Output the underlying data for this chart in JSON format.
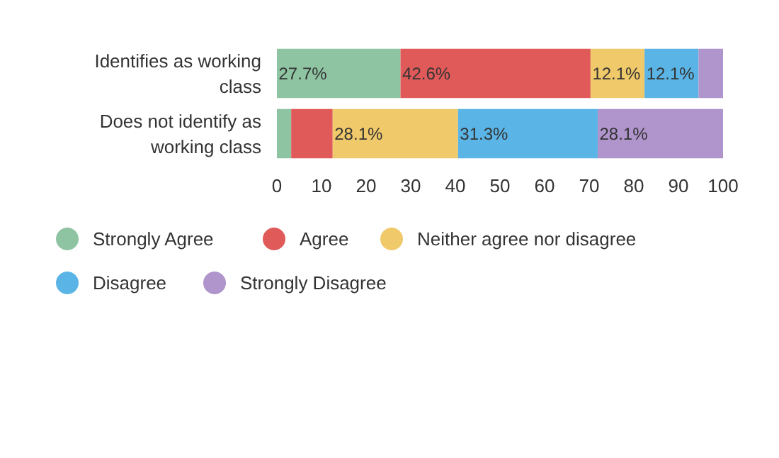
{
  "chart_data": {
    "type": "bar",
    "orientation": "horizontal",
    "stacked": true,
    "categories": [
      "Identifies as working class",
      "Does not identify as working class"
    ],
    "series": [
      {
        "name": "Strongly Agree",
        "color": "#8ec4a2",
        "values": [
          27.7,
          3.2
        ],
        "value_labels": [
          "27.7%",
          null
        ]
      },
      {
        "name": "Agree",
        "color": "#e05a5a",
        "values": [
          42.6,
          9.3
        ],
        "value_labels": [
          "42.6%",
          null
        ]
      },
      {
        "name": "Neither agree nor disagree",
        "color": "#f0c96a",
        "values": [
          12.1,
          28.1
        ],
        "value_labels": [
          "12.1%",
          "28.1%"
        ]
      },
      {
        "name": "Disagree",
        "color": "#5ab5e6",
        "values": [
          12.1,
          31.3
        ],
        "value_labels": [
          "12.1%",
          "31.3%"
        ]
      },
      {
        "name": "Strongly Disagree",
        "color": "#b094cc",
        "values": [
          5.5,
          28.1
        ],
        "value_labels": [
          null,
          "28.1%"
        ]
      }
    ],
    "xlim": [
      0,
      100
    ],
    "xticks": [
      0,
      10,
      20,
      30,
      40,
      50,
      60,
      70,
      80,
      90,
      100
    ],
    "grid": false,
    "legend": "bottom"
  }
}
